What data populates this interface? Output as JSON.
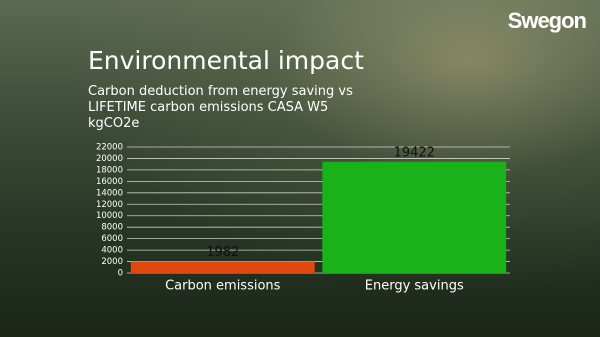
{
  "logo": "Swegon",
  "chart_data": {
    "type": "bar",
    "title": "Environmental impact",
    "subtitle": "Carbon deduction from energy saving vs LIFETIME carbon emissions CASA W5 kgCO2e",
    "categories": [
      "Carbon emissions",
      "Energy savings"
    ],
    "values": [
      1982,
      19422
    ],
    "colors": [
      "#e0480f",
      "#19b219"
    ],
    "ylim": [
      0,
      22000
    ],
    "yticks": [
      0,
      2000,
      4000,
      6000,
      8000,
      10000,
      12000,
      14000,
      16000,
      18000,
      20000,
      22000
    ],
    "grid": true
  }
}
